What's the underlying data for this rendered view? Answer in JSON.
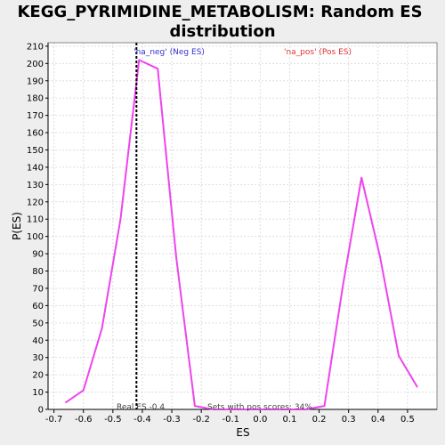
{
  "chart_data": {
    "type": "line",
    "title_line1": "KEGG_PYRIMIDINE_METABOLISM: Random ES",
    "title_line2": "distribution",
    "xlabel": "ES",
    "ylabel": "P(ES)",
    "xlim": [
      -0.72,
      0.6
    ],
    "ylim": [
      0,
      212
    ],
    "x_ticks": [
      -0.7,
      -0.6,
      -0.5,
      -0.4,
      -0.3,
      -0.2,
      -0.1,
      0.0,
      0.1,
      0.2,
      0.3,
      0.4,
      0.5
    ],
    "x_tick_labels": [
      "-0.7",
      "-0.6",
      "-0.5",
      "-0.4",
      "-0.3",
      "-0.2",
      "-0.1",
      "0.0",
      "0.1",
      "0.2",
      "0.3",
      "0.4",
      "0.5"
    ],
    "y_ticks": [
      0,
      10,
      20,
      30,
      40,
      50,
      60,
      70,
      80,
      90,
      100,
      110,
      120,
      130,
      140,
      150,
      160,
      170,
      180,
      190,
      200,
      210
    ],
    "grid": true,
    "series": [
      {
        "color": "#ee44ee",
        "x": [
          -0.66,
          -0.6,
          -0.537,
          -0.474,
          -0.411,
          -0.348,
          -0.285,
          -0.222,
          -0.16,
          -0.097,
          -0.034,
          0.029,
          0.092,
          0.155,
          0.218,
          0.281,
          0.344,
          0.407,
          0.47,
          0.533
        ],
        "y": [
          4,
          11,
          47,
          110,
          202,
          197,
          88,
          2,
          0,
          0,
          0,
          0,
          0,
          0,
          2,
          72,
          134,
          88,
          31,
          13
        ]
      }
    ],
    "real_es": -0.42,
    "annotations": {
      "neg_label": "'na_neg' (Neg ES)",
      "pos_label": "'na_pos' (Pos ES)",
      "real_es_label": "Real ES -0.4",
      "pos_scores_label": "Sets with pos scores: 34%"
    },
    "colors": {
      "line": "#ee44ee",
      "neg_text": "#3333cc",
      "pos_text": "#dd3333",
      "grid": "#dddddd"
    }
  }
}
